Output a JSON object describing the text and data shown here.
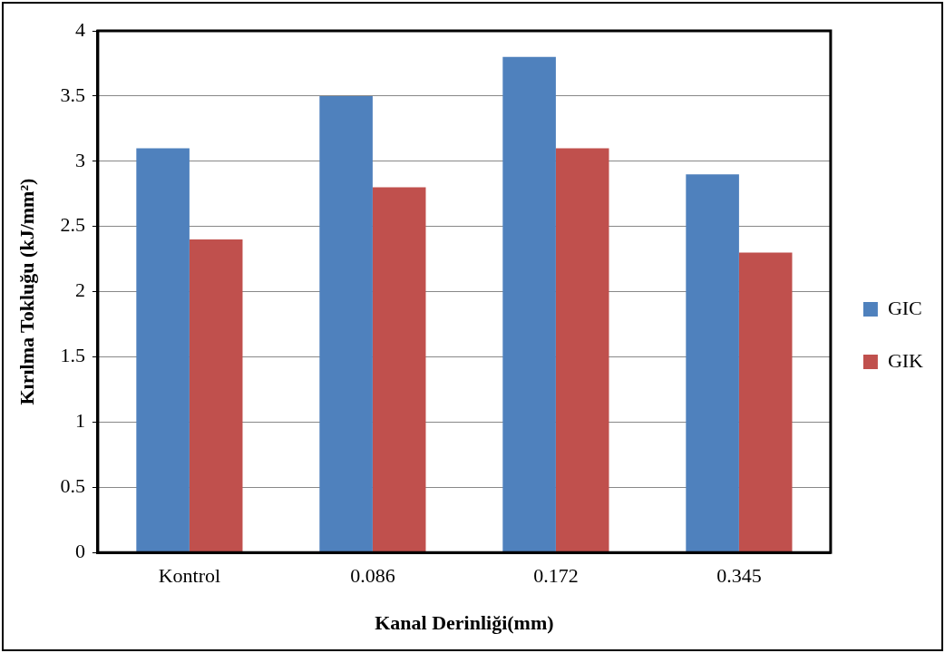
{
  "chart_data": {
    "type": "bar",
    "xlabel": "Kanal Derinliği(mm)",
    "ylabel": "Kırılma Tokluğu (kJ/mm²)",
    "categories": [
      "Kontrol",
      "0.086",
      "0.172",
      "0.345"
    ],
    "series": [
      {
        "name": "GIC",
        "color": "#4f81bd",
        "values": [
          3.1,
          3.5,
          3.8,
          2.9
        ]
      },
      {
        "name": "GIK",
        "color": "#c0504d",
        "values": [
          2.4,
          2.8,
          3.1,
          2.3
        ]
      }
    ],
    "ylim": [
      0,
      4
    ],
    "yticks": [
      0,
      0.5,
      1,
      1.5,
      2,
      2.5,
      3,
      3.5,
      4
    ],
    "grid": "y",
    "legend": "right"
  }
}
